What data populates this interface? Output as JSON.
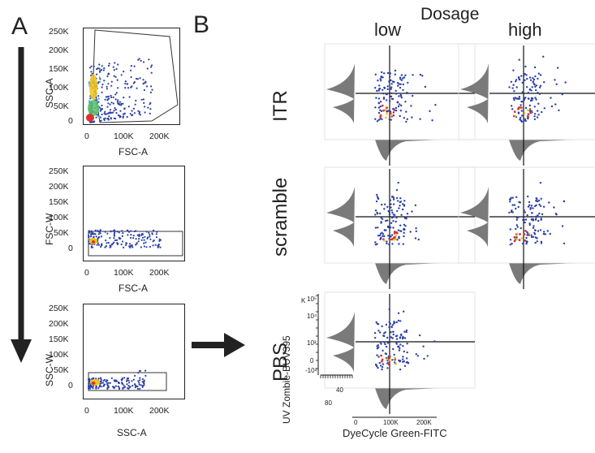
{
  "panel_a": {
    "letter": "A",
    "plots": [
      {
        "name": "scatter-ssc-vs-fsc",
        "ylabel": "SSC-A",
        "xlabel": "FSC-A",
        "yticks": [
          "250K",
          "200K",
          "150K",
          "100K",
          "50K",
          "0"
        ],
        "xticks": [
          "0",
          "100K",
          "200K"
        ]
      },
      {
        "name": "scatter-fscw-vs-fsca",
        "ylabel": "FSC-W",
        "xlabel": "FSC-A",
        "yticks": [
          "250K",
          "200K",
          "150K",
          "100K",
          "50K",
          "0"
        ],
        "xticks": [
          "0",
          "100K",
          "200K"
        ]
      },
      {
        "name": "scatter-sscw-vs-ssca",
        "ylabel": "SSC-W",
        "xlabel": "SSC-A",
        "yticks": [
          "250K",
          "200K",
          "150K",
          "100K",
          "50K",
          "0"
        ],
        "xticks": [
          "0",
          "100K",
          "200K"
        ]
      }
    ]
  },
  "panel_b": {
    "letter": "B",
    "dosage_title": "Dosage",
    "columns": [
      "low",
      "high"
    ],
    "rows": [
      "ITR",
      "scramble",
      "PBS"
    ],
    "pbs_axes": {
      "ylabel": "UV Zombie-BUV395",
      "xlabel": "DyeCycle Green-FITC",
      "yticks": [
        "10⁵",
        "10⁴",
        "10³",
        "0",
        "-10³"
      ],
      "y_prefix": "K",
      "xticks": [
        "0",
        "100K",
        "200K"
      ],
      "hist_ticks": [
        "40",
        "80"
      ]
    }
  },
  "colors": {
    "dots": "#2b3fa6",
    "hot": "#d9342b",
    "warm": "#f0c419",
    "hist": "#7a7a7a",
    "arrow": "#222222"
  }
}
